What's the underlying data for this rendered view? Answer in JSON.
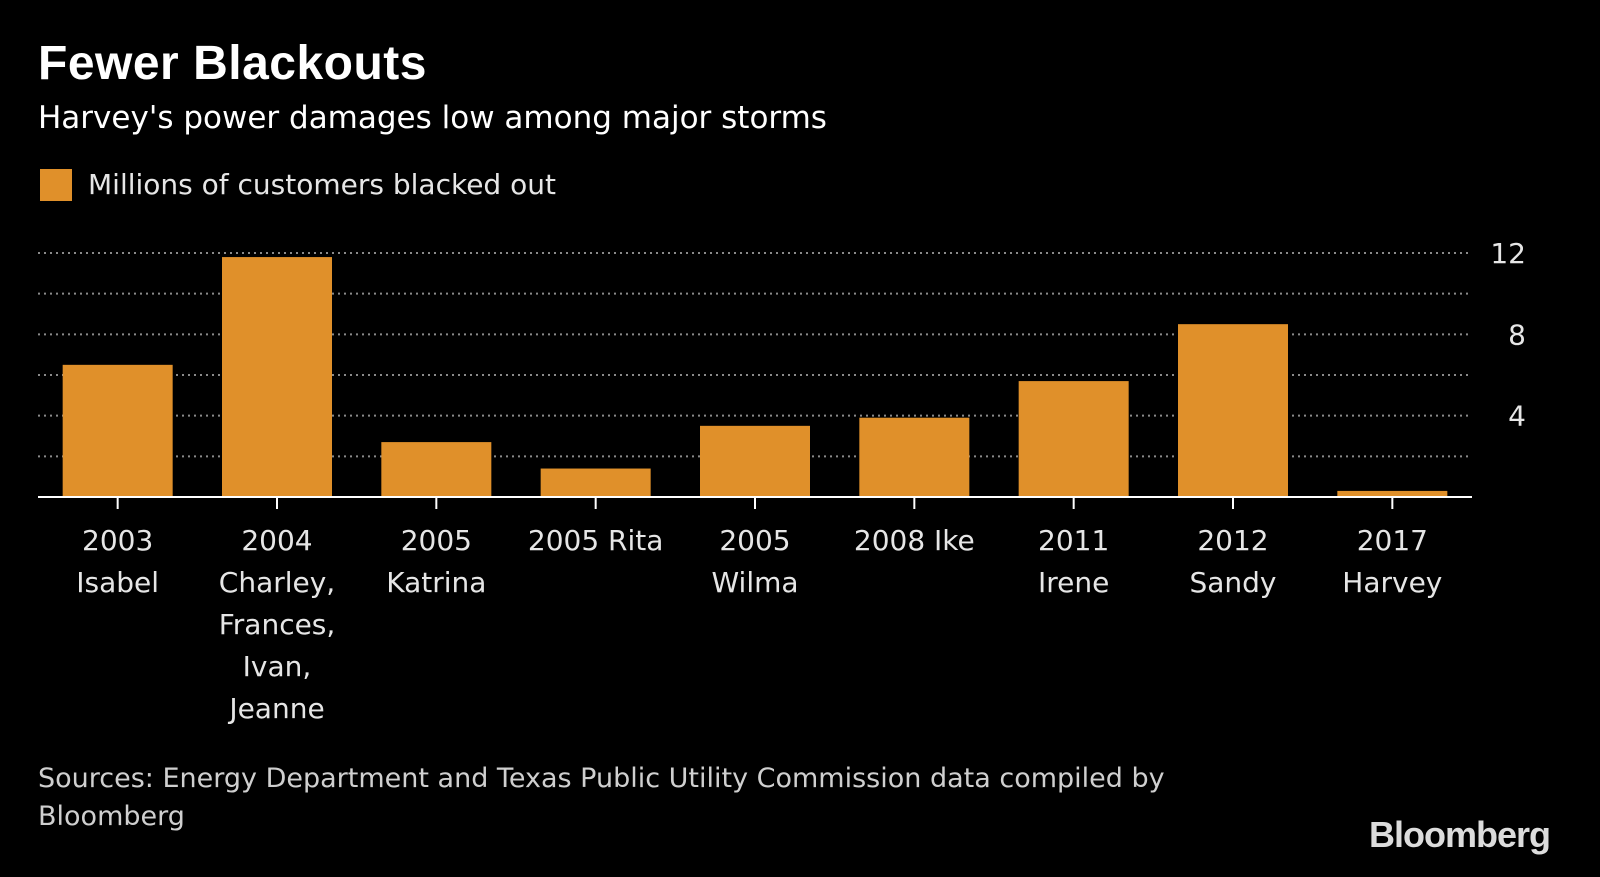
{
  "title": "Fewer Blackouts",
  "subtitle": "Harvey's power damages low among major storms",
  "legend_label": "Millions of customers blacked out",
  "source": "Sources: Energy Department and Texas Public Utility Commission data compiled by Bloomberg",
  "brand": "Bloomberg",
  "colors": {
    "bar": "#e0902a",
    "background": "#000000",
    "grid": "#8a8a8a",
    "axis": "#ffffff"
  },
  "chart_data": {
    "type": "bar",
    "categories": [
      [
        "2003",
        "Isabel"
      ],
      [
        "2004",
        "Charley,",
        "Frances,",
        "Ivan,",
        "Jeanne"
      ],
      [
        "2005",
        "Katrina"
      ],
      [
        "2005 Rita"
      ],
      [
        "2005",
        "Wilma"
      ],
      [
        "2008 Ike"
      ],
      [
        "2011",
        "Irene"
      ],
      [
        "2012",
        "Sandy"
      ],
      [
        "2017",
        "Harvey"
      ]
    ],
    "series": [
      {
        "name": "Millions of customers blacked out",
        "values": [
          6.5,
          11.8,
          2.7,
          1.4,
          3.5,
          3.9,
          5.7,
          8.5,
          0.3
        ]
      }
    ],
    "ylim": [
      0,
      12
    ],
    "yticks": [
      4,
      8,
      12
    ],
    "gridlines": [
      2,
      4,
      6,
      8,
      10,
      12
    ],
    "yaxis_side": "right",
    "grid": true,
    "legend_position": "top-left"
  }
}
